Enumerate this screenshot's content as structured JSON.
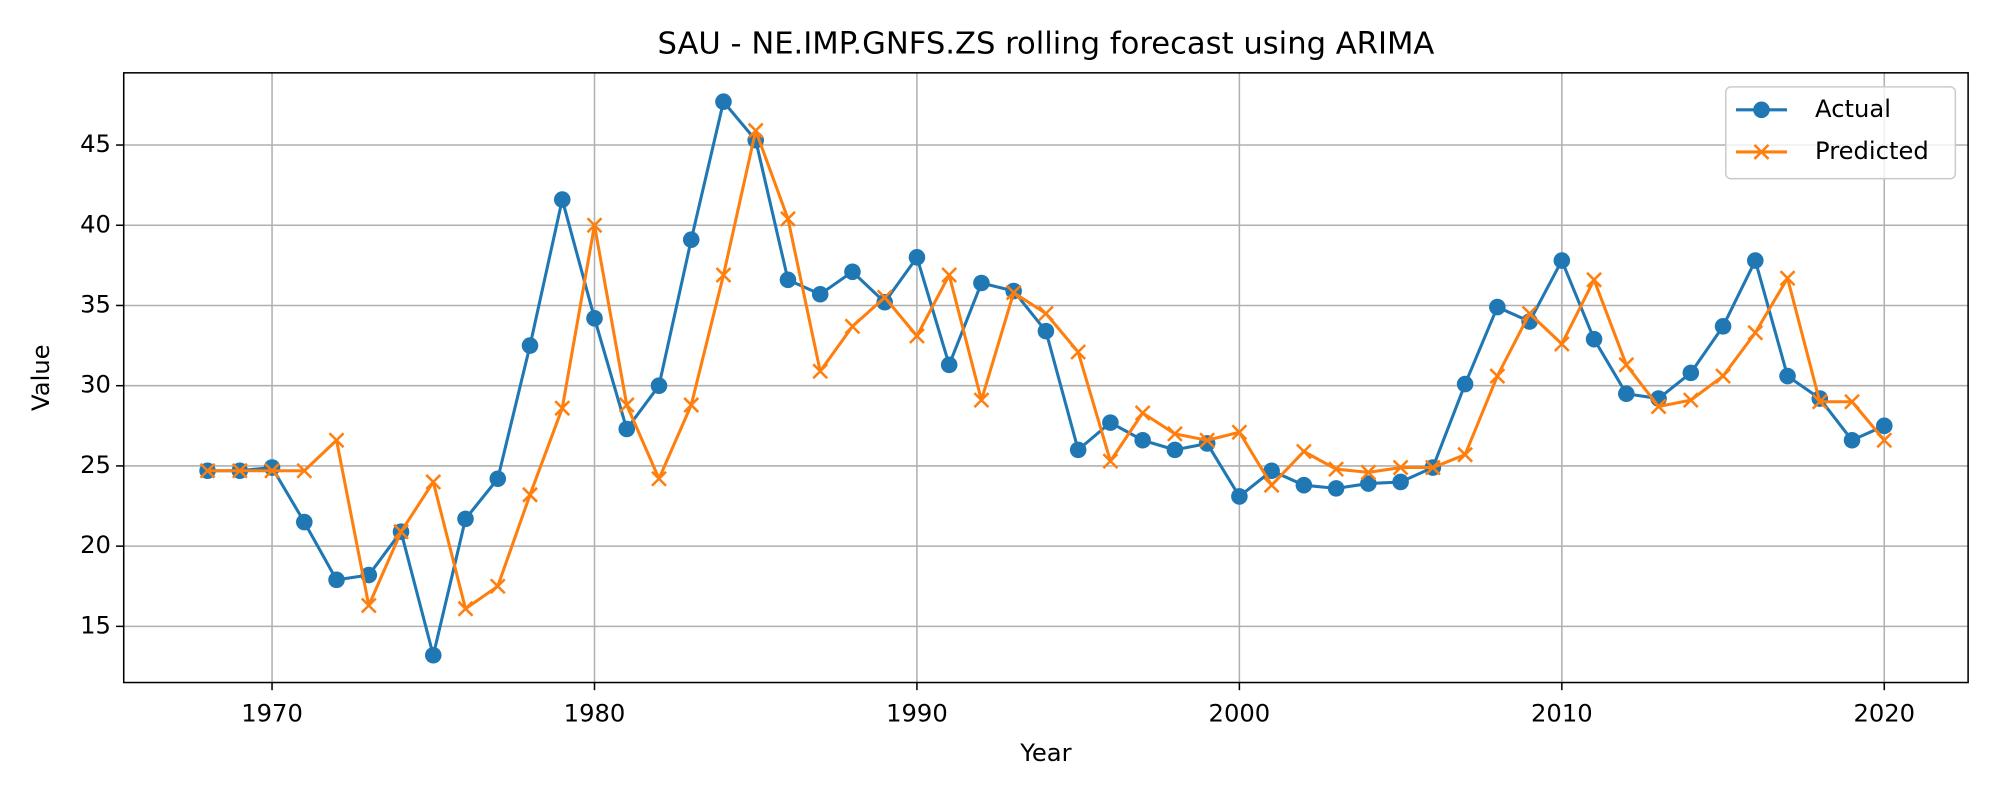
{
  "chart_data": {
    "type": "line",
    "title": "SAU - NE.IMP.GNFS.ZS rolling forecast using ARIMA",
    "x_label": "Year",
    "y_label": "Value",
    "x": [
      1968,
      1969,
      1970,
      1971,
      1972,
      1973,
      1974,
      1975,
      1976,
      1977,
      1978,
      1979,
      1980,
      1981,
      1982,
      1983,
      1984,
      1985,
      1986,
      1987,
      1988,
      1989,
      1990,
      1991,
      1992,
      1993,
      1994,
      1995,
      1996,
      1997,
      1998,
      1999,
      2000,
      2001,
      2002,
      2003,
      2004,
      2005,
      2006,
      2007,
      2008,
      2009,
      2010,
      2011,
      2012,
      2013,
      2014,
      2015,
      2016,
      2017,
      2018,
      2019,
      2020
    ],
    "series": [
      {
        "name": "Actual",
        "color": "#1f77b4",
        "marker": "o",
        "values": [
          24.7,
          24.7,
          24.9,
          21.5,
          17.9,
          18.2,
          20.9,
          13.2,
          21.7,
          24.2,
          32.5,
          41.6,
          34.2,
          27.3,
          30.0,
          39.1,
          47.7,
          45.3,
          36.6,
          35.7,
          37.1,
          35.2,
          38.0,
          31.3,
          36.4,
          35.9,
          33.4,
          26.0,
          27.7,
          26.6,
          26.0,
          26.4,
          23.1,
          24.7,
          23.8,
          23.6,
          23.9,
          24.0,
          24.9,
          30.1,
          34.9,
          34.0,
          37.8,
          32.9,
          29.5,
          29.2,
          30.8,
          33.7,
          37.8,
          30.6,
          29.2,
          26.6,
          27.5
        ]
      },
      {
        "name": "Predicted",
        "color": "#ff7f0e",
        "marker": "x",
        "values": [
          24.7,
          24.7,
          24.7,
          24.7,
          26.6,
          16.3,
          20.9,
          24.0,
          16.1,
          17.5,
          23.2,
          28.6,
          40.0,
          28.8,
          24.2,
          28.8,
          36.9,
          45.9,
          40.4,
          30.9,
          33.7,
          35.5,
          33.1,
          36.9,
          29.1,
          35.8,
          34.5,
          32.1,
          25.3,
          28.3,
          27.0,
          26.6,
          27.1,
          23.8,
          25.9,
          24.8,
          24.6,
          24.9,
          24.9,
          25.7,
          30.6,
          34.5,
          32.6,
          36.6,
          31.3,
          28.7,
          29.1,
          30.6,
          33.3,
          36.7,
          29.0,
          29.0,
          26.6
        ]
      }
    ],
    "xlim": [
      1965.4,
      2022.6
    ],
    "ylim": [
      11.5,
      49.5
    ],
    "xticks": [
      1970,
      1980,
      1990,
      2000,
      2010,
      2020
    ],
    "yticks": [
      15,
      20,
      25,
      30,
      35,
      40,
      45
    ],
    "grid": true,
    "legend": "upper right"
  }
}
